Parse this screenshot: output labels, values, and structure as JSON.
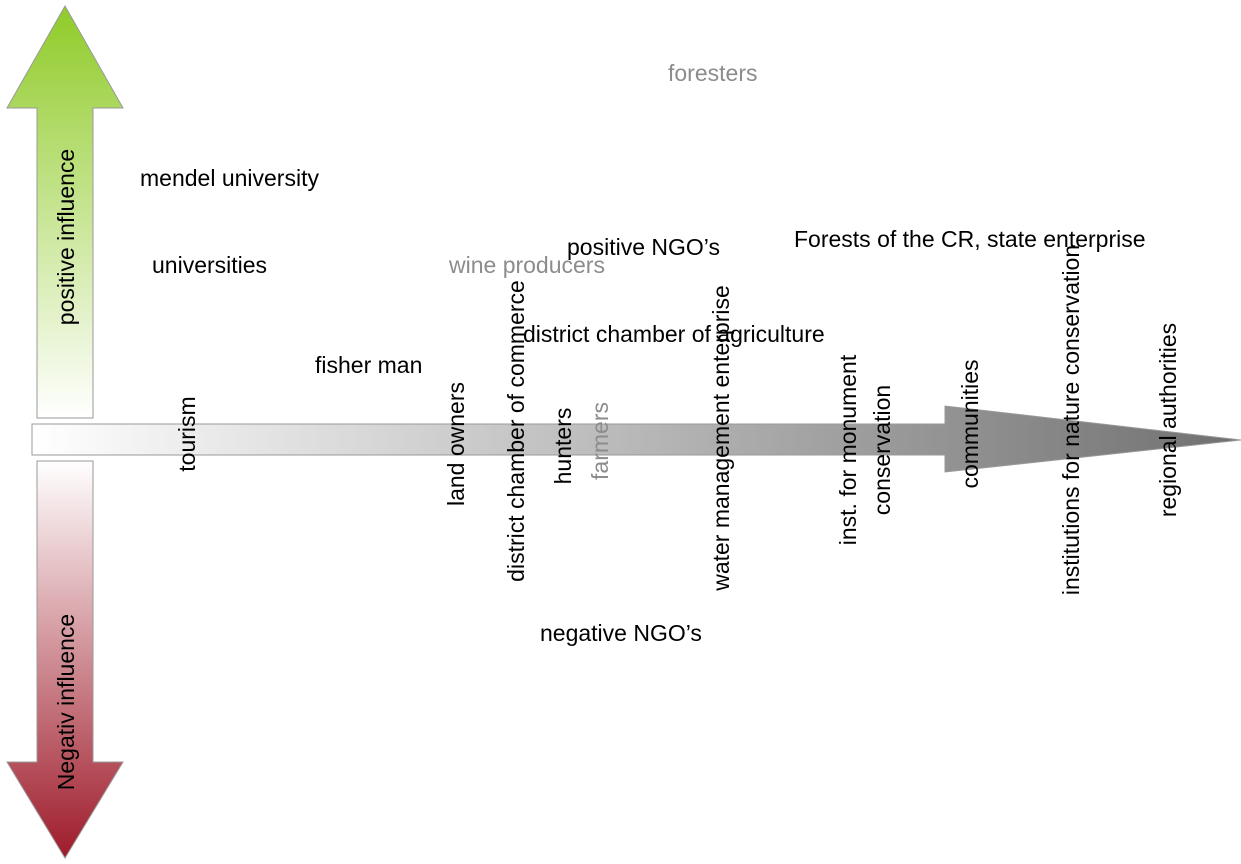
{
  "axes": {
    "positive_label": "positive influence",
    "negative_label": "Negativ influence"
  },
  "stakeholders_horizontal": {
    "foresters": "foresters",
    "mendel_university": "mendel university",
    "universities": "universities",
    "wine_producers": "wine producers",
    "positive_ngos": "positive NGO’s",
    "forests_cr": "Forests of the CR, state enterprise",
    "district_chamber_agriculture": "district chamber of agriculture",
    "fisher_man": "fisher man",
    "negative_ngos": "negative NGO’s"
  },
  "stakeholders_vertical": {
    "tourism": "tourism",
    "land_owners": "land owners",
    "district_chamber_commerce": "district chamber of commerce",
    "hunters": "hunters",
    "farmers": "farmers",
    "water_management": "water management enterprise",
    "inst_monument_line1": "inst. for monument",
    "inst_monument_line2": "conservation",
    "communities": "communities",
    "institutions_nature": "institutions for nature conservation",
    "regional_authorities": "regional authorities"
  },
  "colors": {
    "positive_arrow_top": "#9acd32",
    "negative_arrow_bottom": "#a01c2c",
    "horizontal_arrow_end": "#7a7a7a",
    "gray_text": "#8c8c8c"
  }
}
